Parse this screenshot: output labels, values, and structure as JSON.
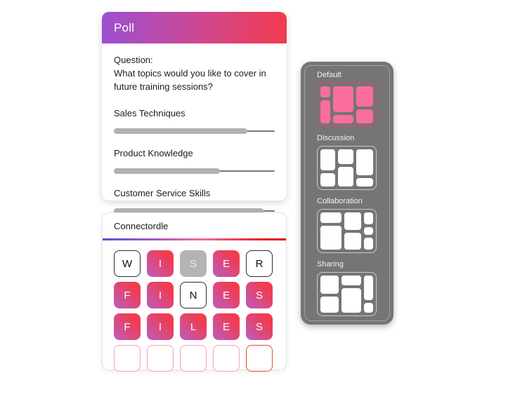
{
  "poll": {
    "title": "Poll",
    "question_label": "Question:",
    "question": "What topics would you like to cover in future training sessions?",
    "options": [
      {
        "label": "Sales Techniques",
        "percent": 83
      },
      {
        "label": "Product Knowledge",
        "percent": 66
      },
      {
        "label": "Customer Service Skills",
        "percent": 93
      }
    ]
  },
  "connectordle": {
    "title": "Connectordle",
    "rows": [
      [
        {
          "letter": "W",
          "state": "plain"
        },
        {
          "letter": "I",
          "state": "match"
        },
        {
          "letter": "S",
          "state": "miss"
        },
        {
          "letter": "E",
          "state": "match"
        },
        {
          "letter": "R",
          "state": "plain"
        }
      ],
      [
        {
          "letter": "F",
          "state": "match"
        },
        {
          "letter": "I",
          "state": "match"
        },
        {
          "letter": "N",
          "state": "plain"
        },
        {
          "letter": "E",
          "state": "match"
        },
        {
          "letter": "S",
          "state": "match"
        }
      ],
      [
        {
          "letter": "F",
          "state": "match"
        },
        {
          "letter": "I",
          "state": "match"
        },
        {
          "letter": "L",
          "state": "match"
        },
        {
          "letter": "E",
          "state": "match"
        },
        {
          "letter": "S",
          "state": "match"
        }
      ],
      [
        {
          "letter": "",
          "state": "empty"
        },
        {
          "letter": "",
          "state": "empty"
        },
        {
          "letter": "",
          "state": "empty"
        },
        {
          "letter": "",
          "state": "empty"
        },
        {
          "letter": "",
          "state": "empty-active"
        }
      ]
    ]
  },
  "layout_panel": {
    "sections": [
      {
        "label": "Default",
        "selected": true
      },
      {
        "label": "Discussion",
        "selected": false
      },
      {
        "label": "Collaboration",
        "selected": false
      },
      {
        "label": "Sharing",
        "selected": false
      }
    ]
  },
  "colors": {
    "header_gradient_start": "#9b50d2",
    "header_gradient_end": "#f23b4c",
    "tile_gradient_start": "#bb5dc0",
    "tile_gradient_end": "#f23b4e",
    "tile_miss_gray": "#b4b4b4",
    "empty_tile_border": "#f5a0bf",
    "active_tile_border": "#e2512b",
    "progress_fill": "#b1b1b1",
    "panel_background": "#757575",
    "thumb_pink_block": "#fa6e9b",
    "thumb_pink_border": "#e0416e"
  }
}
